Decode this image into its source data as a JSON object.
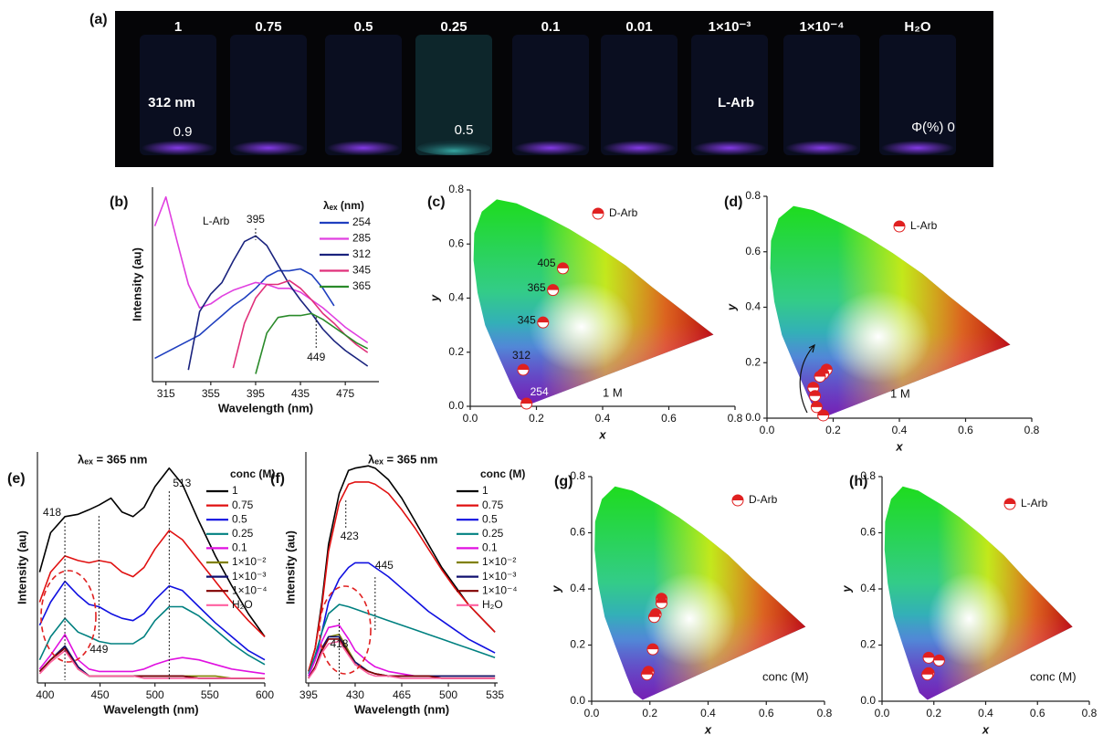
{
  "photo": {
    "panel": "(a)",
    "concentrations": [
      "1",
      "0.75",
      "0.5",
      "0.25",
      "0.1",
      "0.01",
      "1×10⁻³",
      "1×10⁻⁴",
      "H₂O"
    ],
    "excitation": "312 nm",
    "quantum_yields": [
      "0.9",
      "0.5"
    ],
    "sample": "L-Arb",
    "water_qy": "Φ(%) 0"
  },
  "chart_data": [
    {
      "type": "line",
      "panel": "(b)",
      "sample": "L-Arb",
      "xlabel": "Wavelength (nm)",
      "ylabel": "Intensity (au)",
      "legend_title": "λₑₓ (nm)",
      "peaks": [
        395,
        449
      ],
      "xlim": [
        303,
        505
      ],
      "xticks": [
        315,
        355,
        395,
        435,
        475
      ],
      "ylim": [
        0,
        100
      ],
      "x": [
        305,
        315,
        325,
        335,
        345,
        355,
        365,
        375,
        385,
        395,
        405,
        415,
        425,
        435,
        445,
        455,
        465,
        475,
        485,
        495
      ],
      "series": [
        {
          "name": "254",
          "color": "#1f3fbf",
          "values": [
            12,
            15,
            18,
            21,
            24,
            29,
            34,
            39,
            43,
            48,
            54,
            57,
            57,
            58,
            55,
            48,
            39,
            null,
            null,
            null
          ]
        },
        {
          "name": "285",
          "color": "#e040e0",
          "values": [
            80,
            95,
            72,
            50,
            38,
            40,
            44,
            47,
            49,
            51,
            50,
            48,
            48,
            46,
            42,
            38,
            33,
            28,
            24,
            20
          ]
        },
        {
          "name": "312",
          "color": "#1a237e",
          "values": [
            null,
            null,
            null,
            6,
            36,
            45,
            51,
            62,
            72,
            75,
            70,
            60,
            50,
            42,
            35,
            27,
            21,
            16,
            12,
            8
          ]
        },
        {
          "name": "345",
          "color": "#e0307a",
          "values": [
            null,
            null,
            null,
            null,
            null,
            null,
            null,
            7,
            30,
            43,
            50,
            50,
            52,
            48,
            42,
            35,
            30,
            24,
            19,
            15
          ]
        },
        {
          "name": "365",
          "color": "#2a8a2a",
          "values": [
            null,
            null,
            null,
            null,
            null,
            null,
            null,
            null,
            null,
            4,
            25,
            33,
            34,
            34,
            35,
            32,
            28,
            24,
            20,
            17
          ]
        }
      ]
    },
    {
      "type": "scatter",
      "panel": "(c)",
      "xlabel": "x",
      "ylabel": "y",
      "annotation": "1 M",
      "xlim": [
        0,
        0.8
      ],
      "ylim": [
        0,
        0.8
      ],
      "xticks": [
        {
          "value": 0,
          "label": "0.0"
        },
        0.2,
        0.4,
        0.6,
        0.8
      ],
      "yticks": [
        {
          "value": 0,
          "label": "0.0"
        },
        0.2,
        0.4,
        0.6,
        0.8
      ],
      "series": [
        {
          "name": "D-Arb",
          "color": "#e02020",
          "x": [
            0.28,
            0.25,
            0.22,
            0.16,
            0.17
          ],
          "values": [
            0.51,
            0.43,
            0.31,
            0.135,
            0.01
          ],
          "labels": [
            "405",
            "365",
            "345",
            "312",
            "254"
          ]
        }
      ]
    },
    {
      "type": "scatter",
      "panel": "(d)",
      "xlabel": "x",
      "ylabel": "y",
      "annotation": "1 M",
      "xlim": [
        0,
        0.8
      ],
      "ylim": [
        0,
        0.8
      ],
      "xticks": [
        {
          "value": 0,
          "label": "0.0"
        },
        0.2,
        0.4,
        0.6,
        0.8
      ],
      "yticks": [
        {
          "value": 0,
          "label": "0.0"
        },
        0.2,
        0.4,
        0.6,
        0.8
      ],
      "series": [
        {
          "name": "L-Arb",
          "color": "#e02020",
          "x": [
            0.18,
            0.17,
            0.16,
            0.14,
            0.145,
            0.15,
            0.17
          ],
          "values": [
            0.175,
            0.16,
            0.15,
            0.11,
            0.08,
            0.04,
            0.01
          ]
        }
      ]
    },
    {
      "type": "line",
      "panel": "(e)",
      "xlabel": "Wavelength (nm)",
      "ylabel": "Intensity (au)",
      "excitation": "λₑₓ = 365 nm",
      "legend_title": "conc (M)",
      "peaks": [
        418,
        449,
        513
      ],
      "xlim": [
        393,
        600
      ],
      "xticks": [
        400,
        450,
        500,
        550,
        600
      ],
      "ylim": [
        0,
        100
      ],
      "x": [
        395,
        405,
        418,
        430,
        440,
        449,
        460,
        470,
        480,
        490,
        500,
        513,
        525,
        540,
        555,
        570,
        585,
        600
      ],
      "series": [
        {
          "name": "1",
          "color": "#000000",
          "values": [
            48,
            65,
            72,
            73,
            75,
            77,
            80,
            74,
            72,
            76,
            85,
            93,
            86,
            70,
            55,
            42,
            30,
            20
          ]
        },
        {
          "name": "0.75",
          "color": "#e01010",
          "values": [
            35,
            48,
            55,
            53,
            52,
            53,
            52,
            48,
            46,
            50,
            58,
            66,
            62,
            53,
            44,
            35,
            27,
            20
          ]
        },
        {
          "name": "0.5",
          "color": "#1010e0",
          "values": [
            25,
            35,
            44,
            38,
            34,
            33,
            30,
            28,
            27,
            30,
            36,
            42,
            40,
            33,
            26,
            20,
            14,
            10
          ]
        },
        {
          "name": "0.25",
          "color": "#008080",
          "values": [
            10,
            20,
            28,
            22,
            20,
            18,
            17,
            17,
            17,
            20,
            27,
            33,
            33,
            29,
            23,
            17,
            12,
            8
          ]
        },
        {
          "name": "0.1",
          "color": "#e010e0",
          "values": [
            6,
            12,
            21,
            10,
            6,
            5,
            5,
            5,
            5,
            6,
            8,
            10,
            11,
            10,
            8,
            6,
            5,
            4
          ]
        },
        {
          "name": "1×10⁻²",
          "color": "#808000",
          "values": [
            5,
            10,
            16,
            7,
            3,
            3,
            3,
            3,
            3,
            3,
            3,
            3,
            3,
            3,
            3,
            2,
            2,
            2
          ]
        },
        {
          "name": "1×10⁻³",
          "color": "#101070",
          "values": [
            5,
            10,
            16,
            7,
            3,
            3,
            3,
            3,
            3,
            3,
            3,
            3,
            3,
            2,
            2,
            2,
            2,
            2
          ]
        },
        {
          "name": "1×10⁻⁴",
          "color": "#800000",
          "values": [
            5,
            10,
            15,
            6,
            3,
            3,
            3,
            3,
            3,
            3,
            3,
            3,
            3,
            2,
            2,
            2,
            2,
            2
          ]
        },
        {
          "name": "H₂O",
          "color": "#ff60a0",
          "values": [
            4,
            9,
            14,
            6,
            3,
            3,
            3,
            3,
            3,
            2,
            2,
            2,
            2,
            2,
            2,
            2,
            2,
            2
          ]
        }
      ]
    },
    {
      "type": "line",
      "panel": "(f)",
      "xlabel": "Wavelength (nm)",
      "ylabel": "Intensity (au)",
      "excitation": "λₑₓ = 365 nm",
      "legend_title": "conc (M)",
      "peaks": [
        423,
        445,
        418
      ],
      "xlim": [
        393,
        537
      ],
      "xticks": [
        395,
        430,
        465,
        500,
        535
      ],
      "ylim": [
        0,
        100
      ],
      "x": [
        395,
        400,
        405,
        410,
        418,
        425,
        430,
        440,
        445,
        455,
        465,
        475,
        485,
        495,
        505,
        515,
        525,
        535
      ],
      "series": [
        {
          "name": "1",
          "color": "#000000",
          "values": [
            5,
            15,
            35,
            60,
            82,
            92,
            93,
            94,
            93,
            88,
            80,
            70,
            60,
            50,
            42,
            34,
            28,
            22
          ]
        },
        {
          "name": "0.75",
          "color": "#e01010",
          "values": [
            5,
            15,
            33,
            57,
            78,
            86,
            87,
            87,
            86,
            82,
            75,
            67,
            58,
            49,
            41,
            34,
            28,
            22
          ]
        },
        {
          "name": "0.5",
          "color": "#1010e0",
          "values": [
            3,
            10,
            22,
            35,
            45,
            50,
            52,
            52,
            50,
            46,
            41,
            36,
            31,
            27,
            23,
            19,
            16,
            13
          ]
        },
        {
          "name": "0.25",
          "color": "#008080",
          "values": [
            4,
            12,
            22,
            30,
            34,
            33,
            32,
            30,
            29,
            27,
            25,
            23,
            21,
            19,
            17,
            15,
            13,
            11
          ]
        },
        {
          "name": "0.1",
          "color": "#e010e0",
          "values": [
            3,
            10,
            18,
            24,
            25,
            19,
            14,
            9,
            7,
            5,
            4,
            3,
            3,
            3,
            3,
            3,
            3,
            3
          ]
        },
        {
          "name": "1×10⁻²",
          "color": "#808000",
          "values": [
            2,
            7,
            15,
            20,
            21,
            14,
            9,
            5,
            4,
            3,
            3,
            3,
            3,
            3,
            3,
            3,
            3,
            3
          ]
        },
        {
          "name": "1×10⁻³",
          "color": "#101070",
          "values": [
            2,
            7,
            15,
            20,
            20,
            13,
            9,
            5,
            4,
            3,
            3,
            3,
            3,
            3,
            3,
            3,
            3,
            3
          ]
        },
        {
          "name": "1×10⁻⁴",
          "color": "#800000",
          "values": [
            2,
            7,
            14,
            19,
            19,
            13,
            8,
            5,
            4,
            3,
            3,
            3,
            3,
            2,
            2,
            2,
            2,
            2
          ]
        },
        {
          "name": "H₂O",
          "color": "#ff60a0",
          "values": [
            2,
            6,
            13,
            17,
            18,
            12,
            8,
            4,
            3,
            3,
            2,
            2,
            2,
            2,
            2,
            2,
            2,
            2
          ]
        }
      ]
    },
    {
      "type": "scatter",
      "panel": "(g)",
      "xlabel": "x",
      "ylabel": "y",
      "annotation": "conc (M)",
      "xlim": [
        0,
        0.8
      ],
      "ylim": [
        0,
        0.8
      ],
      "xticks": [
        {
          "value": 0,
          "label": "0.0"
        },
        0.2,
        0.4,
        0.6,
        0.8
      ],
      "yticks": [
        {
          "value": 0,
          "label": "0.0"
        },
        0.2,
        0.4,
        0.6,
        0.8
      ],
      "series": [
        {
          "name": "D-Arb",
          "color": "#e02020",
          "x": [
            0.24,
            0.24,
            0.22,
            0.215,
            0.21,
            0.195,
            0.19
          ],
          "values": [
            0.365,
            0.35,
            0.31,
            0.3,
            0.185,
            0.105,
            0.095
          ]
        }
      ]
    },
    {
      "type": "scatter",
      "panel": "(h)",
      "xlabel": "x",
      "ylabel": "y",
      "annotation": "conc (M)",
      "xlim": [
        0,
        0.8
      ],
      "ylim": [
        0,
        0.8
      ],
      "xticks": [
        {
          "value": 0,
          "label": "0.0"
        },
        0.2,
        0.4,
        0.6,
        0.8
      ],
      "yticks": [
        {
          "value": 0,
          "label": "0.0"
        },
        0.2,
        0.4,
        0.6,
        0.8
      ],
      "series": [
        {
          "name": "L-Arb",
          "color": "#e02020",
          "x": [
            0.18,
            0.22,
            0.18,
            0.175
          ],
          "values": [
            0.155,
            0.145,
            0.1,
            0.095
          ]
        }
      ]
    }
  ]
}
